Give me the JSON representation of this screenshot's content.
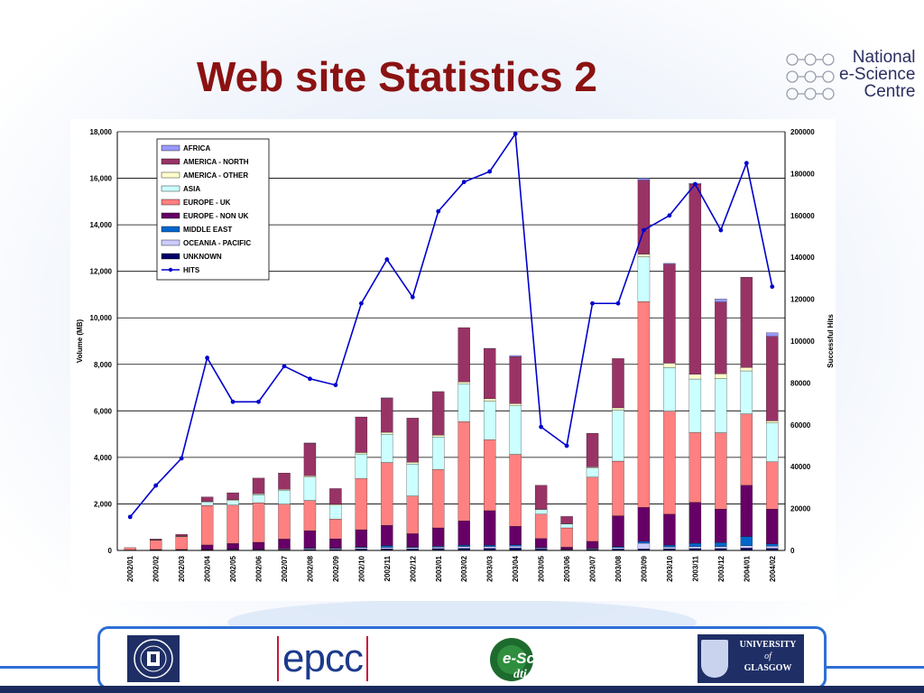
{
  "slide": {
    "title": "Web site Statistics 2"
  },
  "header_logo": {
    "lines": [
      "National",
      "e-Science",
      "Centre"
    ]
  },
  "footer_logos": {
    "epcc": "epcc",
    "escience": "e-Science",
    "dti": "dti",
    "glasgow_line1": "UNIVERSITY",
    "glasgow_line2": "of",
    "glasgow_line3": "GLASGOW",
    "edinburgh_icon": "university-of-edinburgh-crest"
  },
  "colors": {
    "title": "#8b1212",
    "frame_blue": "#2e6fd6",
    "navy": "#1a2b5e"
  },
  "chart_data": {
    "type": "bar",
    "stacked": true,
    "ylabel": "Volume (MB)",
    "y2label": "Successful Hits",
    "ylim": [
      0,
      18000
    ],
    "y_ticks": [
      "0",
      "2,000",
      "4,000",
      "6,000",
      "8,000",
      "10,000",
      "12,000",
      "14,000",
      "16,000",
      "18,000"
    ],
    "y2lim": [
      0,
      200000
    ],
    "y2_ticks": [
      "0",
      "20000",
      "40000",
      "60000",
      "80000",
      "100000",
      "120000",
      "140000",
      "160000",
      "180000",
      "200000"
    ],
    "grid": true,
    "legend_position": "top-left",
    "categories": [
      "2002/01",
      "2002/02",
      "2002/03",
      "2002/04",
      "2002/05",
      "2002/06",
      "2002/07",
      "2002/08",
      "2002/09",
      "2002/10",
      "2002/11",
      "2002/12",
      "2003/01",
      "2003/02",
      "2003/03",
      "2003/04",
      "2003/05",
      "2003/06",
      "2003/07",
      "2003/08",
      "2003/09",
      "2003/10",
      "2003/11",
      "2003/12",
      "2004/01",
      "2004/02"
    ],
    "series": [
      {
        "name": "UNKNOWN",
        "color": "#000066",
        "values": [
          5,
          10,
          10,
          10,
          20,
          20,
          30,
          40,
          40,
          60,
          70,
          60,
          80,
          90,
          90,
          100,
          60,
          20,
          40,
          60,
          60,
          70,
          80,
          80,
          100,
          90
        ]
      },
      {
        "name": "OCEANIA - PACIFIC",
        "color": "#ccccff",
        "values": [
          5,
          10,
          10,
          20,
          20,
          20,
          30,
          40,
          40,
          60,
          60,
          60,
          60,
          80,
          80,
          80,
          40,
          20,
          30,
          60,
          250,
          80,
          80,
          90,
          100,
          90
        ]
      },
      {
        "name": "MIDDLE EAST",
        "color": "#0066cc",
        "values": [
          0,
          5,
          5,
          5,
          10,
          10,
          10,
          20,
          20,
          30,
          80,
          30,
          40,
          60,
          60,
          60,
          30,
          10,
          20,
          40,
          80,
          80,
          150,
          170,
          400,
          100
        ]
      },
      {
        "name": "EUROPE - NON UK",
        "color": "#660066",
        "values": [
          10,
          15,
          20,
          200,
          250,
          300,
          420,
          750,
          400,
          740,
          870,
          570,
          790,
          1040,
          1480,
          800,
          380,
          90,
          300,
          1330,
          1460,
          1330,
          1760,
          1440,
          2200,
          1500
        ]
      },
      {
        "name": "EUROPE - UK",
        "color": "#ff8080",
        "values": [
          100,
          400,
          550,
          1700,
          1650,
          1700,
          1500,
          1300,
          850,
          2200,
          2700,
          1620,
          2510,
          4270,
          3050,
          3090,
          1050,
          830,
          2760,
          2350,
          8850,
          4430,
          3000,
          3280,
          3070,
          2030
        ]
      },
      {
        "name": "ASIA",
        "color": "#ccffff",
        "values": [
          0,
          10,
          20,
          150,
          200,
          350,
          600,
          1000,
          600,
          1060,
          1220,
          1380,
          1400,
          1620,
          1660,
          2100,
          190,
          170,
          400,
          2190,
          1920,
          1880,
          2300,
          2330,
          1850,
          1670
        ]
      },
      {
        "name": "AMERICA - OTHER",
        "color": "#ffffcc",
        "values": [
          0,
          5,
          5,
          25,
          30,
          40,
          40,
          60,
          40,
          60,
          80,
          70,
          80,
          80,
          100,
          80,
          20,
          20,
          40,
          100,
          120,
          180,
          200,
          200,
          150,
          90
        ]
      },
      {
        "name": "AMERICA - NORTH",
        "color": "#993366",
        "values": [
          0,
          35,
          70,
          190,
          300,
          670,
          700,
          1400,
          670,
          1530,
          1460,
          1900,
          1870,
          2340,
          2160,
          2020,
          1030,
          300,
          1450,
          2120,
          3180,
          4260,
          8180,
          3090,
          3880,
          3630
        ]
      },
      {
        "name": "AFRICA",
        "color": "#9999ff",
        "values": [
          0,
          0,
          0,
          0,
          0,
          0,
          0,
          10,
          0,
          0,
          20,
          0,
          0,
          0,
          10,
          50,
          0,
          0,
          0,
          0,
          80,
          30,
          30,
          130,
          0,
          160
        ]
      }
    ],
    "line_series": {
      "name": "HITS",
      "color": "#0000cc",
      "axis": "secondary",
      "values": [
        16000,
        31000,
        44000,
        92000,
        71000,
        71000,
        88000,
        82000,
        79000,
        118000,
        139000,
        121000,
        162000,
        176000,
        181000,
        199000,
        59000,
        50000,
        118000,
        118000,
        153000,
        160000,
        175000,
        153000,
        185000,
        126000
      ]
    }
  }
}
